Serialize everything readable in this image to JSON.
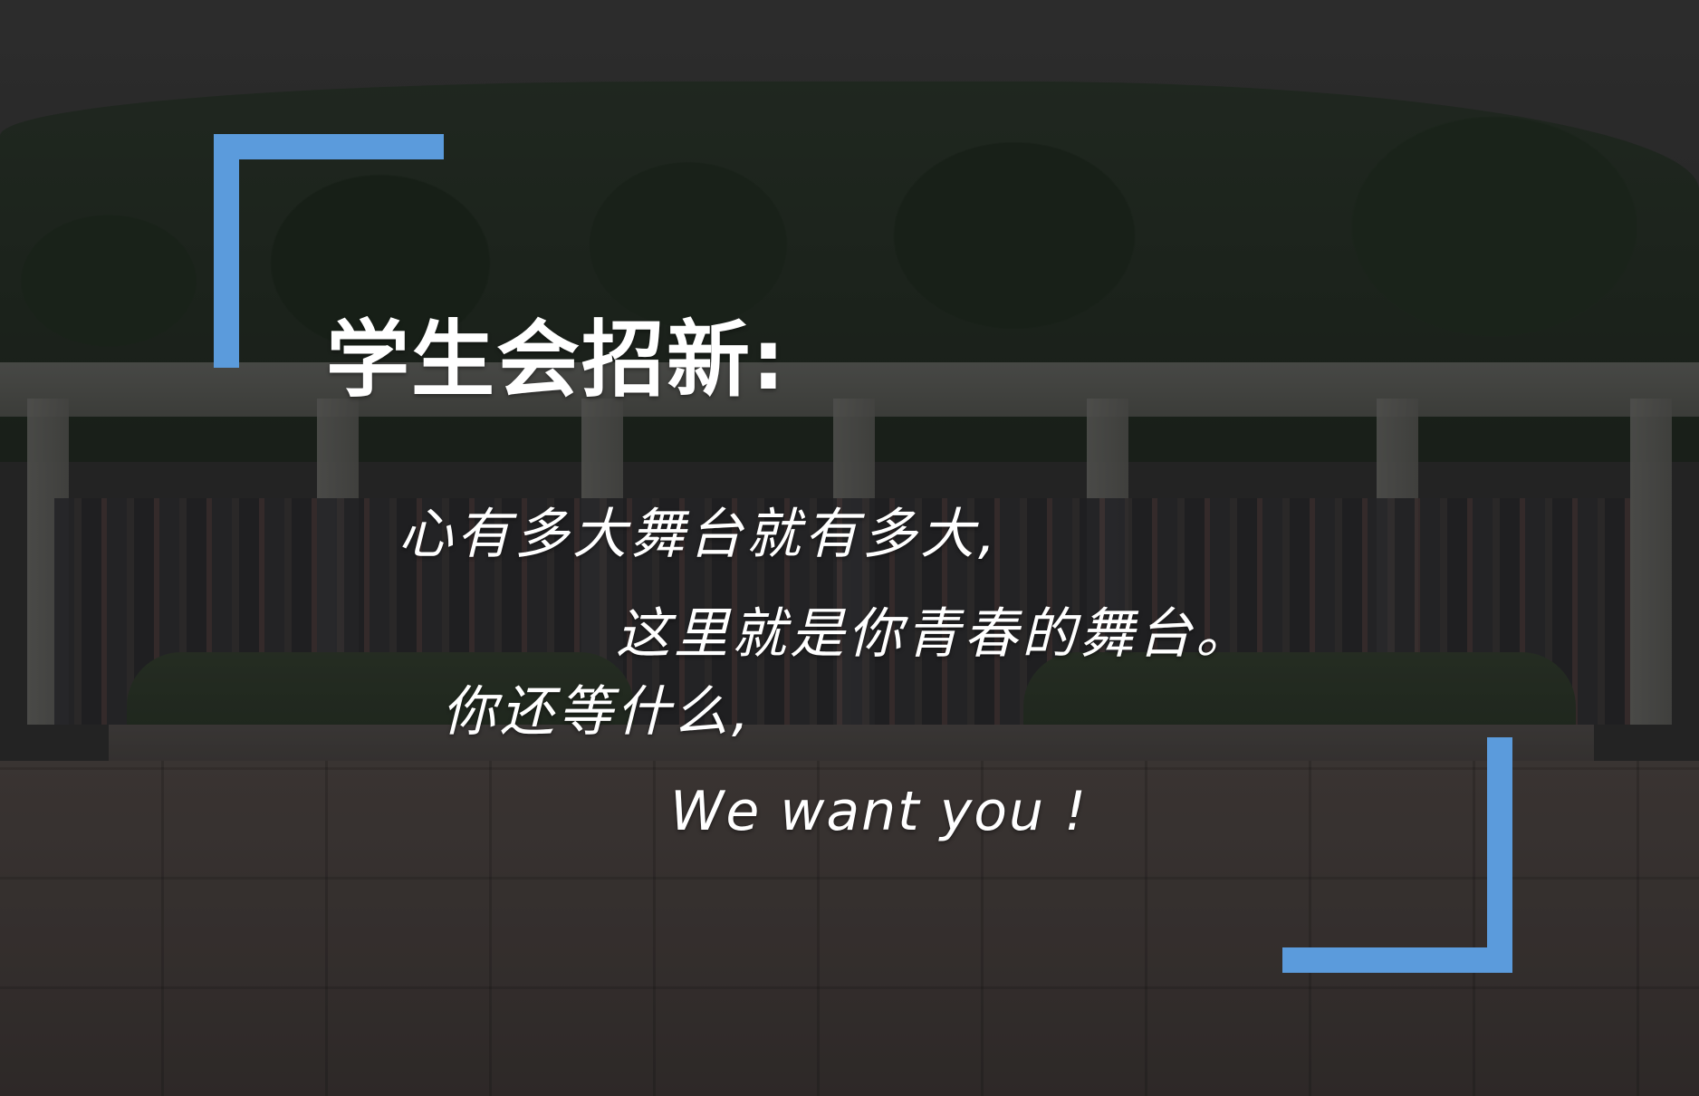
{
  "poster": {
    "title": "学生会招新:",
    "lines": [
      "心有多大舞台就有多大,",
      "这里就是你青春的舞台。",
      "你还等什么,",
      "We want you !"
    ]
  },
  "colors": {
    "accent": "#5b9bdc",
    "text": "#ffffff",
    "overlay": "#2b2b2b"
  }
}
